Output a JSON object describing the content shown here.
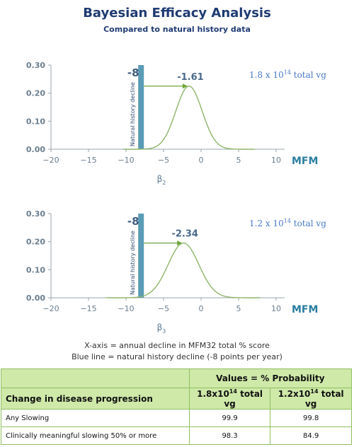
{
  "title": "Bayesian Efficacy Analysis",
  "subtitle": "Compared to natural history data",
  "chart_data": [
    {
      "type": "line",
      "x_ticks": [
        "−20",
        "−15",
        "−10",
        "−5",
        "0",
        "5",
        "10"
      ],
      "y_ticks": [
        "0.00",
        "0.10",
        "0.20",
        "0.30"
      ],
      "xlim": [
        -20,
        10
      ],
      "ylim": [
        0,
        0.3
      ],
      "xlabel_right": "MFM",
      "xlabel_symbol": "β",
      "xlabel_sub": "2",
      "natural_history_value": -8,
      "natural_history_label": "-8",
      "natural_history_text": "Natural history decline",
      "peak_value": -1.61,
      "peak_label": "-1.61",
      "peak_density": 0.225,
      "sd": 1.75,
      "dose_label": {
        "prefix": "1.8 x 10",
        "exp": "14",
        "suffix": " total vg"
      },
      "series": [
        {
          "curve_color": "#8db56a"
        }
      ],
      "bar_color": "#5a9bb5"
    },
    {
      "type": "line",
      "x_ticks": [
        "−20",
        "−15",
        "−10",
        "−5",
        "0",
        "5",
        "10"
      ],
      "y_ticks": [
        "0.00",
        "0.10",
        "0.20",
        "0.30"
      ],
      "xlim": [
        -20,
        10
      ],
      "ylim": [
        0,
        0.3
      ],
      "xlabel_right": "MFM",
      "xlabel_symbol": "β",
      "xlabel_sub": "3",
      "natural_history_value": -8,
      "natural_history_label": "-8",
      "natural_history_text": "Natural history decline",
      "peak_value": -2.34,
      "peak_label": "-2.34",
      "peak_density": 0.195,
      "sd": 2.05,
      "dose_label": {
        "prefix": "1.2 x 10",
        "exp": "14",
        "suffix": " total vg"
      },
      "series": [
        {
          "curve_color": "#8db56a"
        }
      ],
      "bar_color": "#5a9bb5"
    }
  ],
  "notes": {
    "line1": "X-axis = annual decline in MFM32 total % score",
    "line2": "Blue line = natural history decline (-8 points per year)"
  },
  "table": {
    "values_header": "Values = % Probability",
    "col_label": "Change in disease progression",
    "dose1": {
      "prefix": "1.8x10",
      "exp": "14",
      "suffix": " total vg"
    },
    "dose2": {
      "prefix": "1.2x10",
      "exp": "14",
      "suffix": " total vg"
    },
    "rows": [
      {
        "label": "Any Slowing",
        "v1": "99.9",
        "v2": "99.8"
      },
      {
        "label": "Clinically meaningful slowing 50% or more",
        "v1": "98.3",
        "v2": "84.9"
      }
    ],
    "header_color": "#cfe9a9",
    "border_color": "#8fbf5f"
  }
}
